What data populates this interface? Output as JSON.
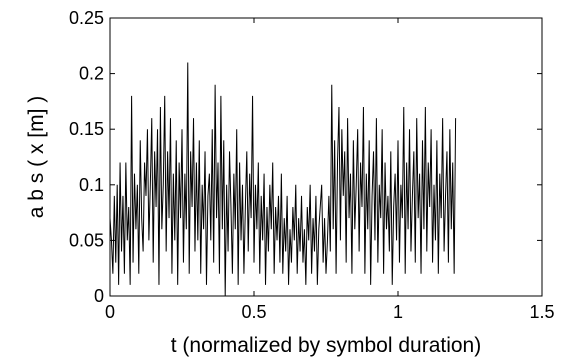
{
  "chart_data": {
    "type": "line",
    "title": "",
    "xlabel": "t (normalized by symbol duration)",
    "ylabel": "a b s ( x [m] )",
    "xlim": [
      0,
      1.5
    ],
    "ylim": [
      0,
      0.25
    ],
    "xticks": [
      0,
      0.5,
      1,
      1.5
    ],
    "xtick_labels": [
      "0",
      "0.5",
      "1",
      "1.5"
    ],
    "yticks": [
      0,
      0.05,
      0.1,
      0.15,
      0.2,
      0.25
    ],
    "ytick_labels": [
      "0",
      "0.05",
      "0.1",
      "0.15",
      "0.2",
      "0.25"
    ],
    "grid": false,
    "legend": "none",
    "line_color": "#000000",
    "series": [
      {
        "x_start": 0,
        "x_step": 0.005,
        "values": [
          0.07,
          0.05,
          0.02,
          0.09,
          0.03,
          0.1,
          0.01,
          0.12,
          0.04,
          0.09,
          0.02,
          0.12,
          0.05,
          0.08,
          0.01,
          0.18,
          0.03,
          0.11,
          0.06,
          0.1,
          0.02,
          0.14,
          0.07,
          0.04,
          0.12,
          0.09,
          0.15,
          0.05,
          0.1,
          0.16,
          0.03,
          0.13,
          0.08,
          0.15,
          0.01,
          0.17,
          0.06,
          0.1,
          0.18,
          0.04,
          0.13,
          0.07,
          0.16,
          0.02,
          0.11,
          0.05,
          0.14,
          0.01,
          0.12,
          0.07,
          0.15,
          0.03,
          0.11,
          0.06,
          0.21,
          0.02,
          0.13,
          0.08,
          0.16,
          0.04,
          0.12,
          0.05,
          0.14,
          0.02,
          0.1,
          0.06,
          0.13,
          0.01,
          0.09,
          0.11,
          0.05,
          0.15,
          0.03,
          0.19,
          0.07,
          0.12,
          0.02,
          0.18,
          0.06,
          0.14,
          0.0,
          0.1,
          0.04,
          0.13,
          0.08,
          0.02,
          0.11,
          0.06,
          0.15,
          0.01,
          0.12,
          0.05,
          0.1,
          0.02,
          0.08,
          0.13,
          0.04,
          0.11,
          0.07,
          0.18,
          0.03,
          0.1,
          0.06,
          0.12,
          0.02,
          0.09,
          0.05,
          0.11,
          0.01,
          0.08,
          0.04,
          0.1,
          0.06,
          0.12,
          0.02,
          0.08,
          0.05,
          0.09,
          0.03,
          0.11,
          0.02,
          0.07,
          0.04,
          0.09,
          0.01,
          0.06,
          0.03,
          0.08,
          0.05,
          0.1,
          0.02,
          0.07,
          0.04,
          0.09,
          0.03,
          0.06,
          0.01,
          0.08,
          0.05,
          0.1,
          0.02,
          0.07,
          0.04,
          0.09,
          0.01,
          0.06,
          0.08,
          0.1,
          0.03,
          0.07,
          0.02,
          0.05,
          0.09,
          0.04,
          0.19,
          0.06,
          0.14,
          0.02,
          0.12,
          0.17,
          0.05,
          0.15,
          0.09,
          0.13,
          0.03,
          0.16,
          0.07,
          0.11,
          0.02,
          0.14,
          0.06,
          0.1,
          0.15,
          0.04,
          0.12,
          0.08,
          0.17,
          0.02,
          0.11,
          0.06,
          0.14,
          0.01,
          0.09,
          0.13,
          0.05,
          0.16,
          0.03,
          0.1,
          0.07,
          0.15,
          0.02,
          0.12,
          0.06,
          0.09,
          0.04,
          0.13,
          0.01,
          0.08,
          0.11,
          0.05,
          0.14,
          0.03,
          0.1,
          0.07,
          0.17,
          0.02,
          0.12,
          0.06,
          0.15,
          0.04,
          0.09,
          0.13,
          0.03,
          0.16,
          0.07,
          0.11,
          0.02,
          0.14,
          0.06,
          0.17,
          0.04,
          0.12,
          0.08,
          0.15,
          0.03,
          0.1,
          0.05,
          0.14,
          0.02,
          0.11,
          0.07,
          0.16,
          0.04,
          0.09,
          0.13,
          0.03,
          0.15,
          0.06,
          0.12,
          0.02,
          0.16
        ]
      }
    ]
  }
}
